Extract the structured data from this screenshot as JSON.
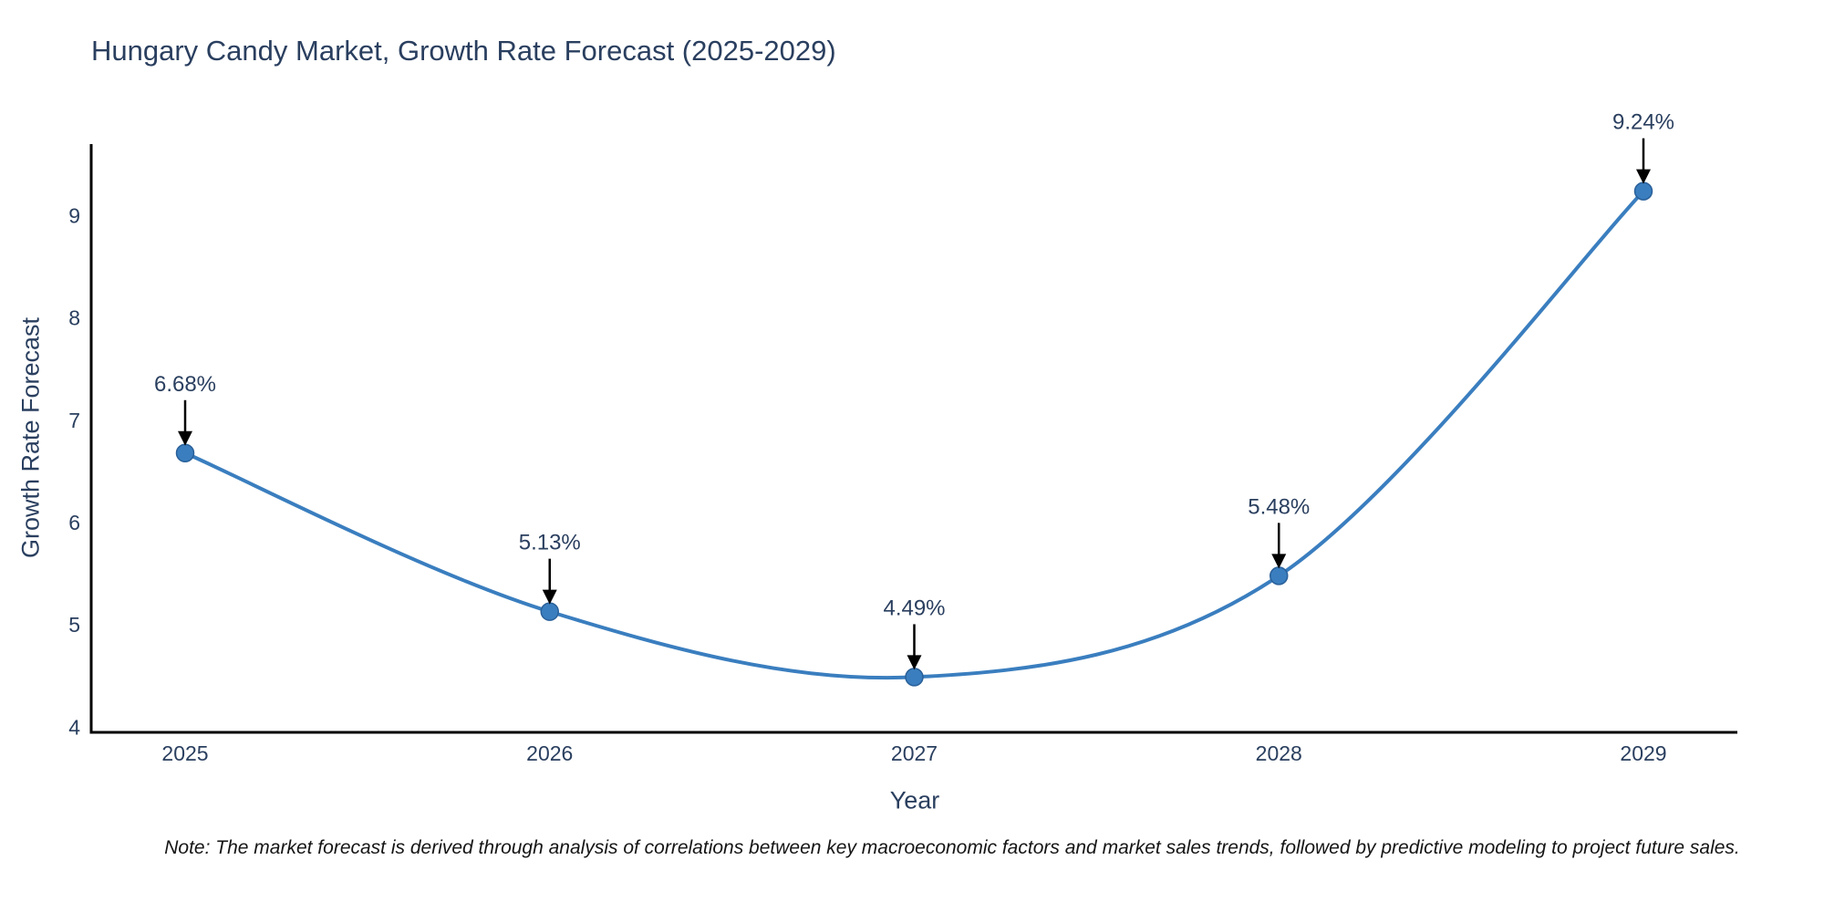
{
  "chart": {
    "title": "Hungary Candy Market, Growth Rate Forecast (2025-2029)",
    "xlabel": "Year",
    "ylabel": "Growth Rate Forecast",
    "footnote": "Note: The market forecast is derived through analysis of correlations between key macroeconomic factors and market sales trends, followed by predictive modeling to project future sales."
  },
  "chart_data": {
    "type": "line",
    "title": "Hungary Candy Market, Growth Rate Forecast (2025-2029)",
    "xlabel": "Year",
    "ylabel": "Growth Rate Forecast",
    "x": [
      2025,
      2026,
      2027,
      2028,
      2029
    ],
    "series": [
      {
        "name": "Growth Rate Forecast",
        "values": [
          6.68,
          5.13,
          4.49,
          5.48,
          9.24
        ]
      }
    ],
    "data_labels": [
      "6.68%",
      "5.13%",
      "4.49%",
      "5.48%",
      "9.24%"
    ],
    "xticks": [
      "2025",
      "2026",
      "2027",
      "2028",
      "2029"
    ],
    "yticks": [
      4,
      5,
      6,
      7,
      8,
      9
    ],
    "ylim": [
      3.95,
      9.7
    ],
    "grid": false,
    "legend": "none",
    "line_shape": "spline",
    "annotation": "label-with-arrow-pointing-to-each-point"
  },
  "colors": {
    "line": "#3a7ebf",
    "marker_fill": "#3a7ebf",
    "marker_edge": "#2a6099",
    "axis_line": "#000000",
    "tick_text": "#2a3f5f",
    "annotation_text": "#2a3f5f",
    "annotation_arrow": "#000000",
    "background": "#ffffff"
  }
}
